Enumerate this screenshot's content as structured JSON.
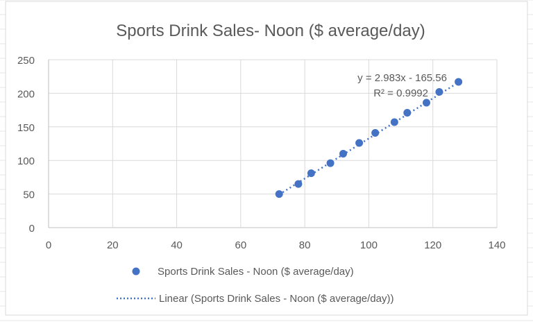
{
  "chart_data": {
    "type": "scatter",
    "title": "Sports Drink Sales- Noon ($ average/day)",
    "xlabel": "",
    "ylabel": "",
    "xlim": [
      0,
      140
    ],
    "ylim": [
      0,
      250
    ],
    "x_ticks": [
      0,
      20,
      40,
      60,
      80,
      100,
      120,
      140
    ],
    "y_ticks": [
      0,
      50,
      100,
      150,
      200,
      250
    ],
    "grid": true,
    "legend_position": "bottom",
    "series": [
      {
        "name": "Sports Drink Sales - Noon ($ average/day)",
        "color": "#4472C4",
        "x": [
          72,
          78,
          82,
          88,
          92,
          97,
          102,
          108,
          112,
          118,
          122,
          128
        ],
        "y": [
          50,
          65,
          81,
          96,
          110,
          126,
          141,
          157,
          171,
          186,
          202,
          217
        ]
      }
    ],
    "trendline": {
      "name": "Linear (Sports Drink Sales - Noon ($ average/day))",
      "type": "linear",
      "slope": 2.983,
      "intercept": -165.56,
      "equation_label": "y = 2.983x - 165.56",
      "r2_label": "R² = 0.9992",
      "color": "#4472C4"
    }
  }
}
